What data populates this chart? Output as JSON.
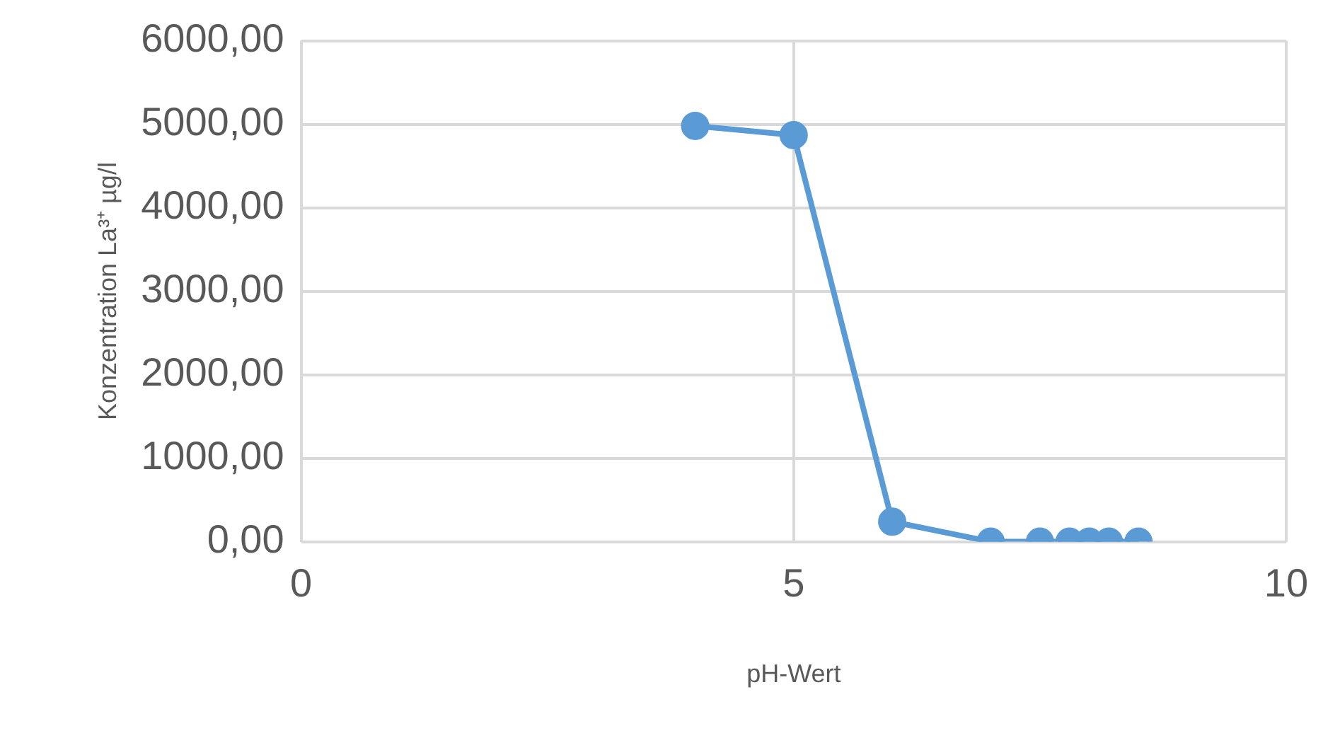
{
  "chart_data": {
    "type": "line",
    "xlabel": "pH-Wert",
    "ylabel": "Konzentration La³⁺ µg/l",
    "x": [
      4,
      5,
      6,
      7,
      7.5,
      7.8,
      8,
      8.2,
      8.5
    ],
    "series": [
      {
        "color": "#5b9bd5",
        "values": [
          4980,
          4870,
          240,
          0,
          0,
          0,
          0,
          0,
          0
        ]
      }
    ],
    "xlim": [
      0,
      10
    ],
    "xticks": [
      0,
      5,
      10
    ],
    "ylim": [
      0,
      6000
    ],
    "yticks": [
      {
        "value": 0,
        "label": "0,00"
      },
      {
        "value": 1000,
        "label": "1000,00"
      },
      {
        "value": 2000,
        "label": "2000,00"
      },
      {
        "value": 3000,
        "label": "3000,00"
      },
      {
        "value": 4000,
        "label": "4000,00"
      },
      {
        "value": 5000,
        "label": "5000,00"
      },
      {
        "value": 6000,
        "label": "6000,00"
      }
    ],
    "grid": true,
    "marker": "circle",
    "line_style": "solid"
  }
}
